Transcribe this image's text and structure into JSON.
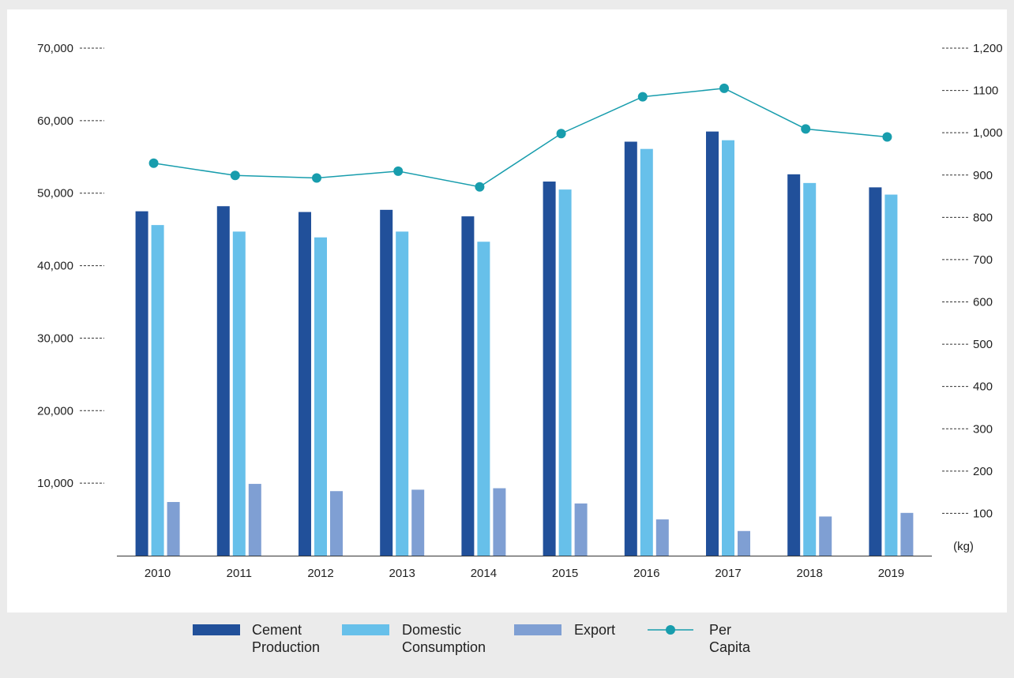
{
  "chart_data": {
    "type": "bar",
    "categories": [
      "2010",
      "2011",
      "2012",
      "2013",
      "2014",
      "2015",
      "2016",
      "2017",
      "2018",
      "2019"
    ],
    "series": [
      {
        "name": "Cement Production",
        "kind": "bar",
        "axis": "left",
        "color": "#21509a",
        "values": [
          47500,
          48200,
          47400,
          47700,
          46800,
          51600,
          57100,
          58500,
          52600,
          50800
        ]
      },
      {
        "name": "Domestic Consumption",
        "kind": "bar",
        "axis": "left",
        "color": "#67c0ea",
        "values": [
          45600,
          44700,
          43900,
          44700,
          43300,
          50500,
          56100,
          57300,
          51400,
          49800
        ]
      },
      {
        "name": "Export",
        "kind": "bar",
        "axis": "left",
        "color": "#7f9fd3",
        "values": [
          7400,
          9900,
          8900,
          9100,
          9300,
          7200,
          5000,
          3400,
          5400,
          5900
        ]
      },
      {
        "name": "Per Capita",
        "kind": "line",
        "axis": "right",
        "color": "#189dad",
        "values": [
          928,
          899,
          893,
          909,
          872,
          998,
          1085,
          1105,
          1009,
          990
        ]
      }
    ],
    "y_left": {
      "ylim": [
        0,
        70000
      ],
      "ticks": [
        10000,
        20000,
        30000,
        40000,
        50000,
        60000,
        70000
      ],
      "tick_labels": [
        "10,000",
        "20,000",
        "30,000",
        "40,000",
        "50,000",
        "60,000",
        "70,000"
      ]
    },
    "y_right": {
      "ylim": [
        0,
        1200
      ],
      "ticks": [
        100,
        200,
        300,
        400,
        500,
        600,
        700,
        800,
        900,
        1000,
        1100,
        1200
      ],
      "tick_labels": [
        "100",
        "200",
        "300",
        "400",
        "500",
        "600",
        "700",
        "800",
        "900",
        "1,000",
        "1100",
        "1,200"
      ],
      "unit": "(kg)"
    },
    "legend": {
      "placement": "bottom",
      "items": [
        {
          "label": "Cement\nProduction",
          "color": "#21509a",
          "style": "bar"
        },
        {
          "label": "Domestic\nConsumption",
          "color": "#67c0ea",
          "style": "bar"
        },
        {
          "label": "Export",
          "color": "#7f9fd3",
          "style": "bar"
        },
        {
          "label": "Per Capita",
          "color": "#189dad",
          "style": "line-marker"
        }
      ]
    },
    "grid": false
  }
}
